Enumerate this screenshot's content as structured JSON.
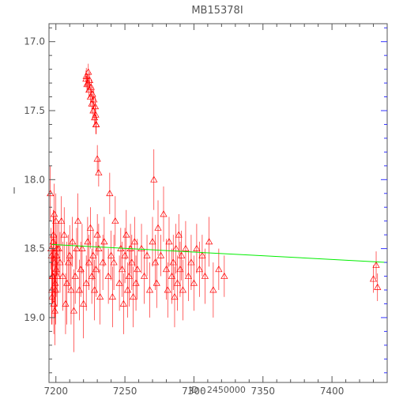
{
  "chart_data": {
    "type": "scatter",
    "title": "MB15378I",
    "xlabel": "JD - 2450000",
    "ylabel": "I",
    "xlim": [
      7195,
      7440
    ],
    "ylim": [
      19.47,
      16.87
    ],
    "y_inverted": true,
    "x_ticks": [
      7200,
      7250,
      7300,
      7350,
      7400
    ],
    "y_ticks": [
      17.0,
      17.5,
      18.0,
      18.5,
      19.0
    ],
    "x_tick_labels": [
      "7200",
      "7250",
      "7300",
      "7350",
      "7400"
    ],
    "y_tick_labels": [
      "17.0",
      "17.5",
      "18.0",
      "18.5",
      "19.0"
    ],
    "grid": false,
    "colors": {
      "points": "#ff0000",
      "fit": "#00ee00",
      "axes": "#555555",
      "right_ticks": "#3333ff"
    },
    "fit_line": {
      "x": [
        7197,
        7440
      ],
      "y": [
        18.47,
        18.6
      ]
    },
    "series": [
      {
        "marker": "open-triangle",
        "x": [
          7196,
          7196.5,
          7197,
          7197.5,
          7198,
          7198.5,
          7199,
          7199.5,
          7200,
          7200.5,
          7201,
          7197.2,
          7198.2,
          7199.2,
          7200.2,
          7196.8,
          7197.8,
          7198.8,
          7199.8,
          7200.8,
          7202,
          7203,
          7204,
          7205,
          7206,
          7207,
          7208,
          7209,
          7210,
          7211,
          7212,
          7213,
          7214,
          7215,
          7216,
          7217,
          7218,
          7219,
          7220,
          7222,
          7223,
          7224,
          7225,
          7226,
          7227,
          7228,
          7229,
          7230,
          7231,
          7232,
          7234,
          7235,
          7238,
          7239,
          7240,
          7241,
          7242,
          7243,
          7246,
          7247,
          7248,
          7249,
          7250,
          7251,
          7252,
          7253,
          7254,
          7255,
          7256,
          7257,
          7258,
          7259,
          7262,
          7264,
          7266,
          7268,
          7270,
          7271,
          7272,
          7273,
          7274,
          7276,
          7278,
          7280,
          7281,
          7282,
          7284,
          7285,
          7286,
          7287,
          7288,
          7289,
          7290,
          7291,
          7292,
          7294,
          7296,
          7298,
          7300,
          7302,
          7304,
          7306,
          7308,
          7311,
          7314,
          7318,
          7322,
          7222,
          7223,
          7224,
          7225,
          7226,
          7227,
          7228,
          7229,
          7223.5,
          7224.5,
          7225.5,
          7226.5,
          7222.5,
          7221.8,
          7227.5,
          7228.5,
          7228.8,
          7229.2,
          7230,
          7231,
          7430,
          7432,
          7433
        ],
        "y": [
          18.1,
          18.5,
          18.8,
          18.7,
          18.45,
          18.9,
          18.6,
          18.75,
          18.3,
          18.55,
          18.7,
          18.85,
          18.4,
          18.95,
          18.65,
          18.55,
          18.7,
          18.25,
          18.8,
          18.5,
          18.5,
          18.6,
          18.3,
          18.7,
          18.4,
          18.9,
          18.75,
          18.6,
          18.55,
          18.8,
          18.45,
          18.95,
          18.7,
          18.5,
          18.3,
          18.8,
          18.65,
          18.5,
          18.9,
          18.75,
          18.45,
          18.6,
          18.35,
          18.7,
          18.55,
          18.8,
          18.65,
          18.4,
          18.5,
          18.85,
          18.6,
          18.45,
          18.7,
          18.1,
          18.55,
          18.85,
          18.6,
          18.3,
          18.75,
          18.5,
          18.65,
          18.9,
          18.55,
          18.4,
          18.8,
          18.7,
          18.5,
          18.6,
          18.85,
          18.45,
          18.75,
          18.65,
          18.5,
          18.7,
          18.55,
          18.8,
          18.45,
          18.0,
          18.6,
          18.75,
          18.35,
          18.55,
          18.25,
          18.65,
          18.8,
          18.45,
          18.7,
          18.6,
          18.85,
          18.5,
          18.75,
          18.4,
          18.65,
          18.55,
          18.8,
          18.5,
          18.7,
          18.6,
          18.75,
          18.5,
          18.65,
          18.55,
          18.7,
          18.45,
          18.8,
          18.65,
          18.7,
          17.25,
          17.3,
          17.35,
          17.4,
          17.45,
          17.5,
          17.55,
          17.6,
          17.22,
          17.28,
          17.33,
          17.38,
          17.31,
          17.27,
          17.42,
          17.47,
          17.53,
          17.6,
          17.85,
          17.95,
          18.72,
          18.62,
          18.78
        ],
        "err": [
          0.2,
          0.15,
          0.25,
          0.2,
          0.18,
          0.22,
          0.17,
          0.25,
          0.2,
          0.15,
          0.22,
          0.2,
          0.18,
          0.25,
          0.2,
          0.15,
          0.2,
          0.22,
          0.25,
          0.18,
          0.2,
          0.22,
          0.18,
          0.25,
          0.2,
          0.22,
          0.3,
          0.2,
          0.22,
          0.25,
          0.18,
          0.3,
          0.2,
          0.15,
          0.2,
          0.22,
          0.2,
          0.18,
          0.25,
          0.2,
          0.18,
          0.2,
          0.15,
          0.2,
          0.18,
          0.22,
          0.2,
          0.15,
          0.18,
          0.2,
          0.2,
          0.18,
          0.2,
          0.15,
          0.18,
          0.22,
          0.2,
          0.18,
          0.2,
          0.15,
          0.2,
          0.22,
          0.2,
          0.18,
          0.2,
          0.22,
          0.18,
          0.2,
          0.22,
          0.18,
          0.2,
          0.22,
          0.18,
          0.2,
          0.15,
          0.2,
          0.18,
          0.22,
          0.2,
          0.18,
          0.2,
          0.15,
          0.2,
          0.22,
          0.2,
          0.18,
          0.2,
          0.2,
          0.22,
          0.18,
          0.2,
          0.15,
          0.2,
          0.18,
          0.22,
          0.2,
          0.18,
          0.2,
          0.2,
          0.18,
          0.2,
          0.15,
          0.2,
          0.18,
          0.2,
          0.15,
          0.15,
          0.06,
          0.06,
          0.06,
          0.07,
          0.07,
          0.07,
          0.06,
          0.07,
          0.06,
          0.06,
          0.06,
          0.06,
          0.06,
          0.06,
          0.07,
          0.07,
          0.07,
          0.07,
          0.1,
          0.1,
          0.1,
          0.1,
          0.1
        ]
      }
    ]
  }
}
